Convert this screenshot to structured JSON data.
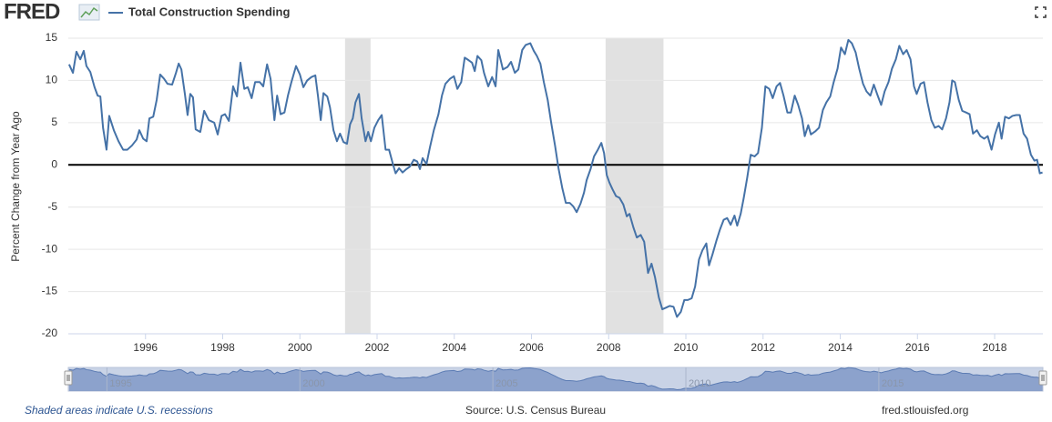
{
  "logo": "FRED",
  "chart_data": {
    "type": "line",
    "y_label": "Percent Change from Year Ago",
    "note": "Shaded areas indicate U.S. recessions",
    "source": "Source: U.S. Census Bureau",
    "site": "fred.stlouisfed.org",
    "xlim": [
      1994.0,
      2019.25
    ],
    "xticks": [
      1996,
      1998,
      2000,
      2002,
      2004,
      2006,
      2008,
      2010,
      2012,
      2014,
      2016,
      2018
    ],
    "ylim": [
      -20,
      15
    ],
    "yticks": [
      15,
      10,
      5,
      0,
      -5,
      -10,
      -15,
      -20
    ],
    "grid": true,
    "zero_line": true,
    "recessions": [
      [
        2001.17,
        2001.83
      ],
      [
        2007.92,
        2009.42
      ]
    ],
    "navigator_ticks": [
      1995,
      2000,
      2005,
      2010,
      2015
    ],
    "x": [
      1994.02,
      1994.12,
      1994.21,
      1994.31,
      1994.4,
      1994.47,
      1994.57,
      1994.68,
      1994.76,
      1994.83,
      1994.9,
      1994.99,
      1995.06,
      1995.18,
      1995.3,
      1995.42,
      1995.53,
      1995.65,
      1995.77,
      1995.84,
      1995.94,
      1996.03,
      1996.1,
      1996.2,
      1996.29,
      1996.38,
      1996.48,
      1996.57,
      1996.69,
      1996.79,
      1996.86,
      1996.93,
      1997.02,
      1997.09,
      1997.16,
      1997.23,
      1997.3,
      1997.42,
      1997.52,
      1997.64,
      1997.78,
      1997.87,
      1997.97,
      1998.06,
      1998.16,
      1998.27,
      1998.37,
      1998.46,
      1998.56,
      1998.65,
      1998.75,
      1998.84,
      1998.96,
      1999.05,
      1999.15,
      1999.24,
      1999.34,
      1999.41,
      1999.5,
      1999.6,
      1999.69,
      1999.78,
      1999.9,
      2000.0,
      2000.09,
      2000.19,
      2000.3,
      2000.4,
      2000.47,
      2000.54,
      2000.61,
      2000.71,
      2000.78,
      2000.87,
      2000.96,
      2001.04,
      2001.13,
      2001.22,
      2001.3,
      2001.37,
      2001.44,
      2001.53,
      2001.6,
      2001.7,
      2001.77,
      2001.84,
      2001.93,
      2002.03,
      2002.12,
      2002.22,
      2002.31,
      2002.41,
      2002.48,
      2002.57,
      2002.66,
      2002.76,
      2002.85,
      2002.95,
      2003.04,
      2003.11,
      2003.18,
      2003.28,
      2003.37,
      2003.47,
      2003.59,
      2003.68,
      2003.77,
      2003.89,
      2003.99,
      2004.08,
      2004.18,
      2004.27,
      2004.37,
      2004.46,
      2004.53,
      2004.6,
      2004.7,
      2004.77,
      2004.88,
      2004.98,
      2005.07,
      2005.14,
      2005.26,
      2005.38,
      2005.47,
      2005.57,
      2005.66,
      2005.76,
      2005.85,
      2005.97,
      2006.06,
      2006.14,
      2006.23,
      2006.32,
      2006.42,
      2006.51,
      2006.61,
      2006.7,
      2006.8,
      2006.89,
      2006.99,
      2007.08,
      2007.17,
      2007.27,
      2007.36,
      2007.43,
      2007.53,
      2007.62,
      2007.72,
      2007.81,
      2007.88,
      2007.95,
      2008.02,
      2008.1,
      2008.19,
      2008.28,
      2008.38,
      2008.47,
      2008.54,
      2008.64,
      2008.73,
      2008.83,
      2008.92,
      2009.02,
      2009.11,
      2009.2,
      2009.3,
      2009.39,
      2009.49,
      2009.58,
      2009.68,
      2009.77,
      2009.87,
      2009.96,
      2010.05,
      2010.15,
      2010.24,
      2010.34,
      2010.43,
      2010.53,
      2010.6,
      2010.69,
      2010.79,
      2010.88,
      2010.98,
      2011.07,
      2011.16,
      2011.26,
      2011.33,
      2011.42,
      2011.5,
      2011.59,
      2011.68,
      2011.78,
      2011.87,
      2011.97,
      2012.06,
      2012.16,
      2012.25,
      2012.35,
      2012.44,
      2012.53,
      2012.63,
      2012.72,
      2012.82,
      2012.91,
      2013.01,
      2013.08,
      2013.17,
      2013.24,
      2013.36,
      2013.45,
      2013.55,
      2013.64,
      2013.74,
      2013.83,
      2013.93,
      2014.02,
      2014.12,
      2014.21,
      2014.3,
      2014.4,
      2014.49,
      2014.59,
      2014.68,
      2014.78,
      2014.87,
      2014.97,
      2015.06,
      2015.15,
      2015.25,
      2015.34,
      2015.44,
      2015.53,
      2015.63,
      2015.72,
      2015.82,
      2015.91,
      2015.98,
      2016.08,
      2016.17,
      2016.26,
      2016.36,
      2016.45,
      2016.55,
      2016.64,
      2016.74,
      2016.83,
      2016.9,
      2016.97,
      2017.07,
      2017.16,
      2017.26,
      2017.35,
      2017.44,
      2017.54,
      2017.63,
      2017.73,
      2017.82,
      2017.92,
      2018.01,
      2018.11,
      2018.18,
      2018.27,
      2018.37,
      2018.46,
      2018.56,
      2018.65,
      2018.75,
      2018.84,
      2018.94,
      2019.03,
      2019.1,
      2019.17,
      2019.24
    ],
    "series": [
      {
        "name": "Total Construction Spending",
        "color": "#4572a7",
        "values": [
          11.9,
          10.9,
          13.4,
          12.5,
          13.5,
          11.7,
          11.0,
          9.2,
          8.2,
          8.1,
          4.4,
          1.8,
          5.8,
          4.1,
          2.8,
          1.8,
          1.8,
          2.3,
          3.0,
          4.1,
          3.1,
          2.8,
          5.5,
          5.7,
          7.7,
          10.7,
          10.2,
          9.6,
          9.5,
          10.9,
          12.0,
          11.3,
          8.4,
          5.9,
          8.4,
          8.0,
          4.2,
          3.9,
          6.4,
          5.3,
          5.0,
          3.6,
          5.8,
          6.0,
          5.2,
          9.3,
          8.1,
          12.1,
          9.0,
          9.2,
          7.9,
          9.8,
          9.8,
          9.3,
          11.9,
          10.2,
          5.3,
          8.2,
          6.0,
          6.2,
          8.2,
          9.8,
          11.7,
          10.7,
          9.2,
          10.0,
          10.4,
          10.6,
          8.1,
          5.3,
          8.5,
          8.1,
          6.8,
          4.1,
          2.8,
          3.7,
          2.7,
          2.5,
          4.8,
          5.5,
          7.4,
          8.4,
          5.5,
          2.8,
          3.9,
          2.8,
          4.4,
          5.3,
          5.9,
          1.8,
          1.8,
          0.1,
          -1.0,
          -0.4,
          -0.9,
          -0.5,
          -0.2,
          0.6,
          0.4,
          -0.5,
          0.8,
          0.1,
          2.1,
          4.1,
          6.0,
          8.2,
          9.6,
          10.2,
          10.5,
          9.0,
          9.8,
          12.7,
          12.4,
          12.1,
          11.1,
          12.9,
          12.4,
          10.9,
          9.3,
          10.4,
          9.3,
          13.6,
          11.3,
          11.6,
          12.2,
          10.9,
          11.3,
          13.6,
          14.2,
          14.4,
          13.5,
          12.9,
          12.0,
          9.8,
          7.7,
          5.0,
          2.3,
          -0.4,
          -2.8,
          -4.5,
          -4.5,
          -4.9,
          -5.6,
          -4.6,
          -3.3,
          -1.8,
          -0.5,
          1.0,
          1.8,
          2.6,
          1.4,
          -1.2,
          -2.1,
          -2.9,
          -3.7,
          -3.9,
          -4.7,
          -6.1,
          -5.8,
          -7.4,
          -8.6,
          -8.3,
          -9.1,
          -12.8,
          -11.7,
          -13.3,
          -15.7,
          -17.1,
          -16.9,
          -16.7,
          -16.8,
          -18.0,
          -17.4,
          -16.0,
          -16.0,
          -15.8,
          -14.4,
          -11.2,
          -10.1,
          -9.3,
          -11.9,
          -10.6,
          -9.0,
          -7.7,
          -6.5,
          -6.3,
          -7.1,
          -6.0,
          -7.2,
          -5.8,
          -3.9,
          -1.5,
          1.2,
          1.0,
          1.4,
          4.4,
          9.3,
          9.0,
          7.9,
          9.3,
          9.7,
          8.2,
          6.2,
          6.2,
          8.2,
          7.1,
          5.5,
          3.4,
          4.7,
          3.6,
          4.0,
          4.4,
          6.5,
          7.4,
          8.1,
          9.8,
          11.4,
          13.9,
          13.1,
          14.8,
          14.4,
          13.3,
          11.4,
          9.6,
          8.7,
          8.2,
          9.5,
          8.2,
          7.1,
          8.7,
          9.8,
          11.4,
          12.5,
          14.1,
          13.1,
          13.6,
          12.5,
          9.3,
          8.4,
          9.6,
          9.8,
          7.4,
          5.3,
          4.4,
          4.6,
          4.2,
          5.5,
          7.4,
          10.0,
          9.8,
          7.7,
          6.4,
          6.2,
          6.0,
          3.7,
          4.1,
          3.4,
          3.1,
          3.4,
          1.8,
          3.6,
          5.0,
          3.1,
          5.7,
          5.5,
          5.8,
          5.9,
          5.9,
          3.7,
          3.1,
          1.2,
          0.5,
          0.6,
          -1.0,
          -0.9
        ]
      }
    ]
  }
}
